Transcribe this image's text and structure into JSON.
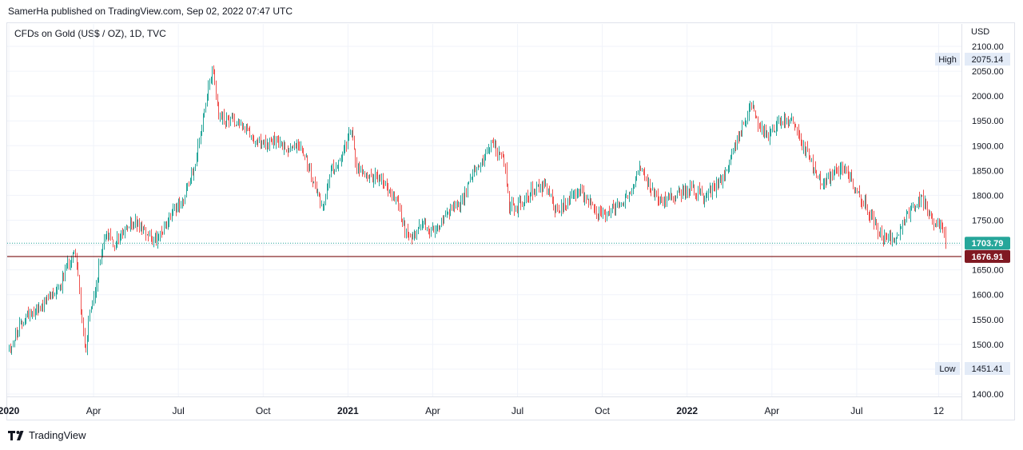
{
  "header": {
    "publisher": "SamerHa published on TradingView.com, Sep 02, 2022 07:47 UTC",
    "symbol": "CFDs on Gold (US$ / OZ), 1D, TVC"
  },
  "footer": {
    "brand": "TradingView",
    "logo_icon": "tradingview-logo-icon"
  },
  "colors": {
    "up": "#26a69a",
    "down": "#ef5350",
    "line": "#7b1113",
    "last": "#26a69a",
    "support_label": "#801922",
    "grid": "#f0f3fa",
    "axis_text": "#131722",
    "tag_bg": "#e3ebf7"
  },
  "chart_data": {
    "type": "candlestick",
    "title": "CFDs on Gold (US$ / OZ), 1D, TVC",
    "currency": "USD",
    "ylim": [
      1380,
      2110
    ],
    "y_ticks": [
      1400,
      1450,
      1500,
      1550,
      1600,
      1650,
      1700,
      1750,
      1800,
      1850,
      1900,
      1950,
      2000,
      2050,
      2100
    ],
    "y_tick_labels": [
      "1400.00",
      "1450.00",
      "1500.00",
      "1550.00",
      "1600.00",
      "1650.00",
      "1700.00",
      "1750.00",
      "1800.00",
      "1850.00",
      "1900.00",
      "1950.00",
      "2000.00",
      "2050.00",
      "2100.00"
    ],
    "x_range_months": [
      0,
      35.2
    ],
    "x_ticks": [
      {
        "month": 0,
        "label": "2020",
        "bold": true
      },
      {
        "month": 3,
        "label": "Apr",
        "bold": false
      },
      {
        "month": 6,
        "label": "Jul",
        "bold": false
      },
      {
        "month": 9,
        "label": "Oct",
        "bold": false
      },
      {
        "month": 12,
        "label": "2021",
        "bold": true
      },
      {
        "month": 15,
        "label": "Apr",
        "bold": false
      },
      {
        "month": 18,
        "label": "Jul",
        "bold": false
      },
      {
        "month": 21,
        "label": "Oct",
        "bold": false
      },
      {
        "month": 24,
        "label": "2022",
        "bold": true
      },
      {
        "month": 27,
        "label": "Apr",
        "bold": false
      },
      {
        "month": 30,
        "label": "Jul",
        "bold": false
      },
      {
        "month": 32.9,
        "label": "12",
        "bold": false
      }
    ],
    "price_path": [
      [
        0,
        1490
      ],
      [
        0.6,
        1560
      ],
      [
        1.1,
        1575
      ],
      [
        1.5,
        1600
      ],
      [
        1.9,
        1630
      ],
      [
        2.1,
        1660
      ],
      [
        2.35,
        1690
      ],
      [
        2.5,
        1600
      ],
      [
        2.7,
        1475
      ],
      [
        2.85,
        1560
      ],
      [
        3,
        1590
      ],
      [
        3.25,
        1680
      ],
      [
        3.45,
        1725
      ],
      [
        3.7,
        1700
      ],
      [
        4,
        1725
      ],
      [
        4.4,
        1745
      ],
      [
        4.7,
        1735
      ],
      [
        5.2,
        1710
      ],
      [
        5.4,
        1720
      ],
      [
        5.8,
        1770
      ],
      [
        6.2,
        1795
      ],
      [
        6.6,
        1870
      ],
      [
        6.9,
        1960
      ],
      [
        7.2,
        2060
      ],
      [
        7.4,
        1960
      ],
      [
        7.6,
        1950
      ],
      [
        8.2,
        1950
      ],
      [
        8.5,
        1920
      ],
      [
        9,
        1900
      ],
      [
        9.5,
        1910
      ],
      [
        9.8,
        1890
      ],
      [
        10.1,
        1905
      ],
      [
        10.4,
        1895
      ],
      [
        10.8,
        1820
      ],
      [
        11.1,
        1775
      ],
      [
        11.4,
        1850
      ],
      [
        11.8,
        1880
      ],
      [
        12.1,
        1945
      ],
      [
        12.3,
        1855
      ],
      [
        12.6,
        1845
      ],
      [
        13,
        1835
      ],
      [
        13.3,
        1820
      ],
      [
        13.7,
        1785
      ],
      [
        14,
        1735
      ],
      [
        14.3,
        1715
      ],
      [
        14.6,
        1740
      ],
      [
        14.9,
        1730
      ],
      [
        15.2,
        1730
      ],
      [
        15.6,
        1770
      ],
      [
        16,
        1785
      ],
      [
        16.4,
        1840
      ],
      [
        16.8,
        1880
      ],
      [
        17,
        1905
      ],
      [
        17.3,
        1890
      ],
      [
        17.5,
        1870
      ],
      [
        17.7,
        1780
      ],
      [
        18,
        1775
      ],
      [
        18.5,
        1810
      ],
      [
        19,
        1820
      ],
      [
        19.2,
        1790
      ],
      [
        19.4,
        1765
      ],
      [
        19.8,
        1790
      ],
      [
        20.2,
        1810
      ],
      [
        20.6,
        1780
      ],
      [
        21,
        1760
      ],
      [
        21.6,
        1780
      ],
      [
        22,
        1810
      ],
      [
        22.3,
        1860
      ],
      [
        22.6,
        1820
      ],
      [
        23,
        1785
      ],
      [
        23.6,
        1800
      ],
      [
        24.1,
        1815
      ],
      [
        24.6,
        1795
      ],
      [
        25,
        1820
      ],
      [
        25.4,
        1850
      ],
      [
        25.7,
        1900
      ],
      [
        26,
        1950
      ],
      [
        26.3,
        1990
      ],
      [
        26.5,
        1940
      ],
      [
        26.8,
        1920
      ],
      [
        27.1,
        1935
      ],
      [
        27.4,
        1955
      ],
      [
        27.8,
        1940
      ],
      [
        28.2,
        1890
      ],
      [
        28.5,
        1850
      ],
      [
        28.8,
        1820
      ],
      [
        29.2,
        1855
      ],
      [
        29.6,
        1850
      ],
      [
        29.9,
        1815
      ],
      [
        30.3,
        1785
      ],
      [
        30.7,
        1735
      ],
      [
        31,
        1710
      ],
      [
        31.4,
        1720
      ],
      [
        31.7,
        1755
      ],
      [
        32,
        1775
      ],
      [
        32.3,
        1795
      ],
      [
        32.6,
        1750
      ],
      [
        32.9,
        1740
      ],
      [
        33.2,
        1705
      ]
    ],
    "high": {
      "label": "High",
      "value": "2075.14"
    },
    "low": {
      "label": "Low",
      "value": "1451.41"
    },
    "last_price": {
      "value": 1703.79,
      "label": "1703.79"
    },
    "support_line": {
      "value": 1676.91,
      "label": "1676.91"
    }
  }
}
